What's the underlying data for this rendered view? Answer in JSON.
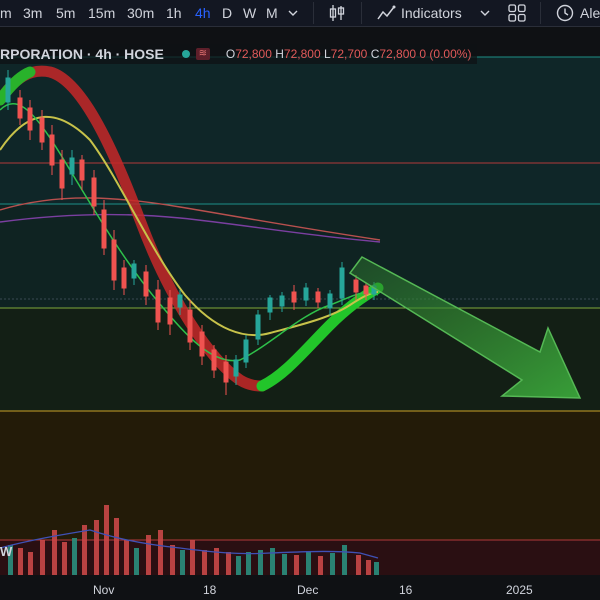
{
  "toolbar": {
    "timeframes": [
      "m",
      "3m",
      "5m",
      "15m",
      "30m",
      "1h",
      "4h",
      "D",
      "W",
      "M"
    ],
    "active_timeframe": "4h",
    "indicators_label": "Indicators",
    "alert_label": "Ale"
  },
  "legend": {
    "symbol": "RPORATION · 4h · HOSE",
    "o_key": "O",
    "o_val": "72,800",
    "h_key": "H",
    "h_val": "72,800",
    "l_key": "L",
    "l_val": "72,700",
    "c_key": "C",
    "c_val": "72,800",
    "change": "0 (0.00%)"
  },
  "x_axis": {
    "labels": [
      "Nov",
      "18",
      "Dec",
      "16",
      "2025"
    ]
  },
  "volume_label": "W",
  "colors": {
    "up": "#26a69a",
    "down": "#ef5350",
    "accent": "#2962ff",
    "forecast_arrow": "#3a8c3a"
  }
}
